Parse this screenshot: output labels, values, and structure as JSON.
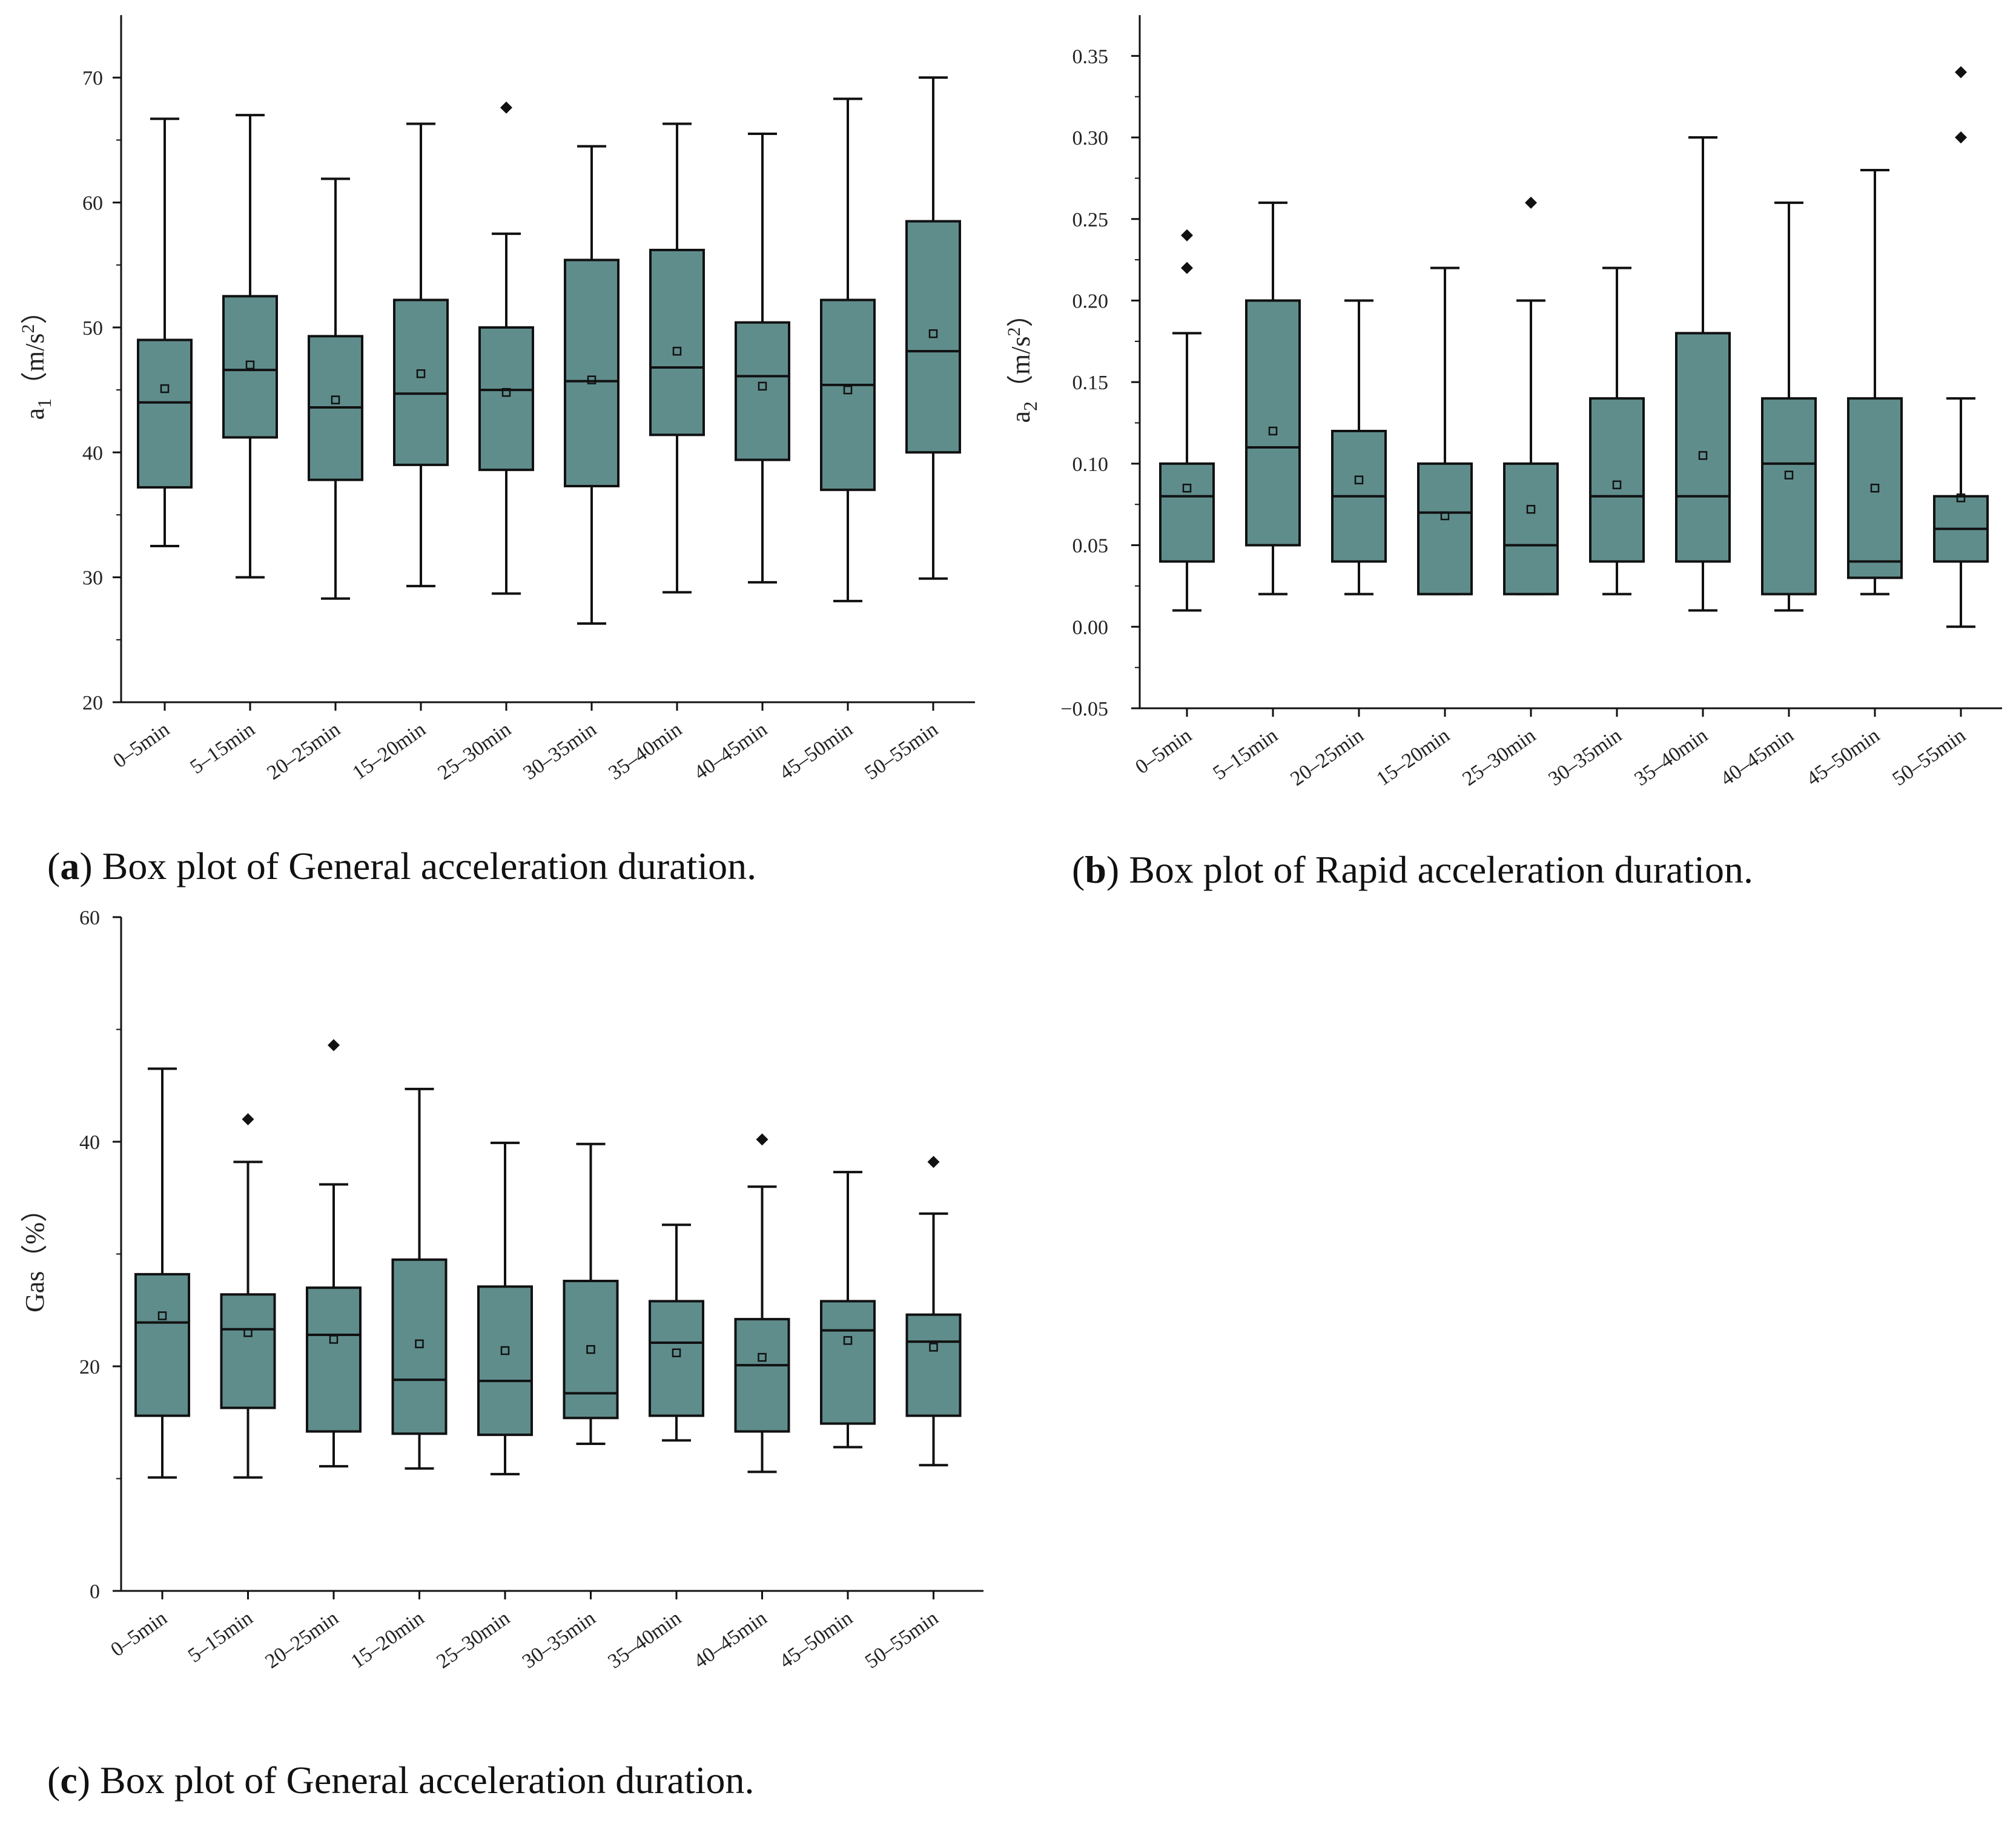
{
  "chart_data": [
    {
      "id": "a",
      "type": "box",
      "caption": {
        "letter": "a",
        "text": "Box plot of General acceleration duration."
      },
      "ylabel": {
        "main": "a",
        "sub": "1",
        "unit_open": "（m/s",
        "unit_sup": "2",
        "unit_close": "）"
      },
      "ylim": [
        20,
        75
      ],
      "yticks": [
        20,
        30,
        40,
        50,
        60,
        70
      ],
      "ytick_labels": [
        "20",
        "30",
        "40",
        "50",
        "60",
        "70"
      ],
      "categories": [
        "0–5min",
        "5–15min",
        "20–25min",
        "15–20min",
        "25–30min",
        "30–35min",
        "35–40min",
        "40–45min",
        "45–50min",
        "50–55min"
      ],
      "boxes": [
        {
          "whislo": 32.5,
          "q1": 37.2,
          "med": 44.0,
          "q3": 49.0,
          "whishi": 66.7,
          "mean": 45.1,
          "fliers": []
        },
        {
          "whislo": 30.0,
          "q1": 41.2,
          "med": 46.6,
          "q3": 52.5,
          "whishi": 67.0,
          "mean": 47.0,
          "fliers": []
        },
        {
          "whislo": 28.3,
          "q1": 37.8,
          "med": 43.6,
          "q3": 49.3,
          "whishi": 61.9,
          "mean": 44.2,
          "fliers": []
        },
        {
          "whislo": 29.3,
          "q1": 39.0,
          "med": 44.7,
          "q3": 52.2,
          "whishi": 66.3,
          "mean": 46.3,
          "fliers": []
        },
        {
          "whislo": 28.7,
          "q1": 38.6,
          "med": 45.0,
          "q3": 50.0,
          "whishi": 57.5,
          "mean": 44.8,
          "fliers": [
            67.6
          ]
        },
        {
          "whislo": 26.3,
          "q1": 37.3,
          "med": 45.7,
          "q3": 55.4,
          "whishi": 64.5,
          "mean": 45.8,
          "fliers": []
        },
        {
          "whislo": 28.8,
          "q1": 41.4,
          "med": 46.8,
          "q3": 56.2,
          "whishi": 66.3,
          "mean": 48.1,
          "fliers": []
        },
        {
          "whislo": 29.6,
          "q1": 39.4,
          "med": 46.1,
          "q3": 50.4,
          "whishi": 65.5,
          "mean": 45.3,
          "fliers": []
        },
        {
          "whislo": 28.1,
          "q1": 37.0,
          "med": 45.4,
          "q3": 52.2,
          "whishi": 68.3,
          "mean": 45.0,
          "fliers": []
        },
        {
          "whislo": 29.9,
          "q1": 40.0,
          "med": 48.1,
          "q3": 58.5,
          "whishi": 70.0,
          "mean": 49.5,
          "fliers": []
        }
      ]
    },
    {
      "id": "b",
      "type": "box",
      "caption": {
        "letter": "b",
        "text": "Box plot of Rapid acceleration duration."
      },
      "ylabel": {
        "main": "a",
        "sub": "2",
        "unit_open": "（m/s",
        "unit_sup": "2",
        "unit_close": "）"
      },
      "ylim": [
        -0.05,
        0.375
      ],
      "yticks": [
        -0.05,
        0.0,
        0.05,
        0.1,
        0.15,
        0.2,
        0.25,
        0.3,
        0.35
      ],
      "ytick_labels": [
        "−0.05",
        "0.00",
        "0.05",
        "0.10",
        "0.15",
        "0.20",
        "0.25",
        "0.30",
        "0.35"
      ],
      "categories": [
        "0–5min",
        "5–15min",
        "20–25min",
        "15–20min",
        "25–30min",
        "30–35min",
        "35–40min",
        "40–45min",
        "45–50min",
        "50–55min"
      ],
      "boxes": [
        {
          "whislo": 0.01,
          "q1": 0.04,
          "med": 0.08,
          "q3": 0.1,
          "whishi": 0.18,
          "mean": 0.085,
          "fliers": [
            0.22,
            0.24
          ]
        },
        {
          "whislo": 0.02,
          "q1": 0.05,
          "med": 0.11,
          "q3": 0.2,
          "whishi": 0.26,
          "mean": 0.12,
          "fliers": []
        },
        {
          "whislo": 0.02,
          "q1": 0.04,
          "med": 0.08,
          "q3": 0.12,
          "whishi": 0.2,
          "mean": 0.09,
          "fliers": []
        },
        {
          "whislo": 0.02,
          "q1": 0.02,
          "med": 0.07,
          "q3": 0.1,
          "whishi": 0.22,
          "mean": 0.068,
          "fliers": []
        },
        {
          "whislo": 0.02,
          "q1": 0.02,
          "med": 0.05,
          "q3": 0.1,
          "whishi": 0.2,
          "mean": 0.072,
          "fliers": [
            0.26
          ]
        },
        {
          "whislo": 0.02,
          "q1": 0.04,
          "med": 0.08,
          "q3": 0.14,
          "whishi": 0.22,
          "mean": 0.087,
          "fliers": []
        },
        {
          "whislo": 0.01,
          "q1": 0.04,
          "med": 0.08,
          "q3": 0.18,
          "whishi": 0.3,
          "mean": 0.105,
          "fliers": []
        },
        {
          "whislo": 0.01,
          "q1": 0.02,
          "med": 0.1,
          "q3": 0.14,
          "whishi": 0.26,
          "mean": 0.093,
          "fliers": []
        },
        {
          "whislo": 0.02,
          "q1": 0.03,
          "med": 0.04,
          "q3": 0.14,
          "whishi": 0.28,
          "mean": 0.085,
          "fliers": []
        },
        {
          "whislo": 0.0,
          "q1": 0.04,
          "med": 0.06,
          "q3": 0.08,
          "whishi": 0.14,
          "mean": 0.079,
          "fliers": [
            0.3,
            0.34
          ]
        }
      ]
    },
    {
      "id": "c",
      "type": "box",
      "caption": {
        "letter": "c",
        "text": "Box plot of General acceleration duration."
      },
      "ylabel": {
        "main": "Gas",
        "sub": "",
        "unit_open": "（%）",
        "unit_sup": "",
        "unit_close": ""
      },
      "ylim": [
        0,
        60
      ],
      "yticks": [
        0,
        20,
        40,
        60
      ],
      "ytick_labels": [
        "0",
        "20",
        "40",
        "60"
      ],
      "categories": [
        "0–5min",
        "5–15min",
        "20–25min",
        "15–20min",
        "25–30min",
        "30–35min",
        "35–40min",
        "40–45min",
        "45–50min",
        "50–55min"
      ],
      "boxes": [
        {
          "whislo": 10.1,
          "q1": 15.6,
          "med": 23.9,
          "q3": 28.2,
          "whishi": 46.5,
          "mean": 24.5,
          "fliers": []
        },
        {
          "whislo": 10.1,
          "q1": 16.3,
          "med": 23.3,
          "q3": 26.4,
          "whishi": 38.2,
          "mean": 23.0,
          "fliers": [
            42.0
          ]
        },
        {
          "whislo": 11.1,
          "q1": 14.2,
          "med": 22.8,
          "q3": 27.0,
          "whishi": 36.2,
          "mean": 22.4,
          "fliers": [
            48.6
          ]
        },
        {
          "whislo": 10.9,
          "q1": 14.0,
          "med": 18.8,
          "q3": 29.5,
          "whishi": 44.7,
          "mean": 22.0,
          "fliers": []
        },
        {
          "whislo": 10.4,
          "q1": 13.9,
          "med": 18.7,
          "q3": 27.1,
          "whishi": 39.9,
          "mean": 21.4,
          "fliers": []
        },
        {
          "whislo": 13.1,
          "q1": 15.4,
          "med": 17.6,
          "q3": 27.6,
          "whishi": 39.8,
          "mean": 21.5,
          "fliers": []
        },
        {
          "whislo": 13.4,
          "q1": 15.6,
          "med": 22.1,
          "q3": 25.8,
          "whishi": 32.6,
          "mean": 21.2,
          "fliers": []
        },
        {
          "whislo": 10.6,
          "q1": 14.2,
          "med": 20.1,
          "q3": 24.2,
          "whishi": 36.0,
          "mean": 20.8,
          "fliers": [
            40.2
          ]
        },
        {
          "whislo": 12.8,
          "q1": 14.9,
          "med": 23.2,
          "q3": 25.8,
          "whishi": 37.3,
          "mean": 22.3,
          "fliers": []
        },
        {
          "whislo": 11.2,
          "q1": 15.6,
          "med": 22.2,
          "q3": 24.6,
          "whishi": 33.6,
          "mean": 21.7,
          "fliers": [
            38.2
          ]
        }
      ]
    }
  ]
}
